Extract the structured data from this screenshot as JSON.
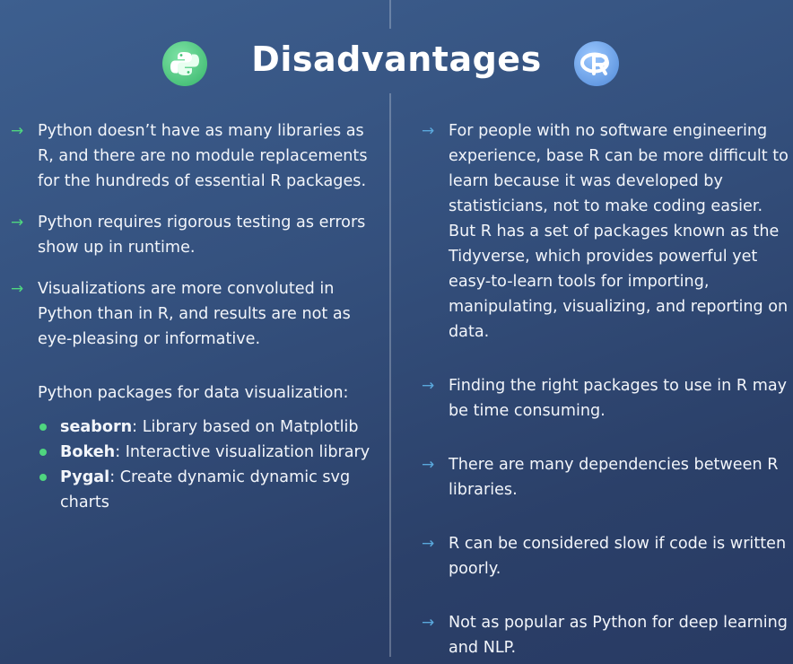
{
  "header": {
    "title": "Disadvantages",
    "left_logo": "python-logo-icon",
    "right_logo": "r-logo-icon",
    "colors": {
      "python_logo": "#3fbf72",
      "r_logo": "#5f97e0",
      "green_arrow": "#4fd67f",
      "blue_arrow": "#5aa8dc"
    }
  },
  "python": {
    "items": [
      "Python doesn’t have as many libraries as R, and there are no module replacements for the hundreds of essential R packages.",
      "Python requires rigorous testing as errors show up in runtime.",
      "Visualizations are more convoluted in Python than in R, and results are not as eye-pleasing or informative."
    ],
    "packages_heading": "Python packages for data visualization:",
    "packages": [
      {
        "name": "seaborn",
        "desc": ": Library based on Matplotlib"
      },
      {
        "name": "Bokeh",
        "desc": ": Interactive visualization library"
      },
      {
        "name": "Pygal",
        "desc": ": Create dynamic dynamic svg charts"
      }
    ]
  },
  "r": {
    "items": [
      "For people with no software engineering experience, base R can be more difficult to learn because it was developed by statisticians, not to make coding easier. But R has a set of packages known as the Tidyverse, which provides powerful yet easy-to-learn tools for importing, manipulating, visualizing, and reporting on data.",
      "Finding the right packages to use in R may be time consuming.",
      "There are many dependencies between R libraries.",
      "R can be considered slow if code is written poorly.",
      "Not as popular as Python for deep learning and NLP."
    ]
  }
}
